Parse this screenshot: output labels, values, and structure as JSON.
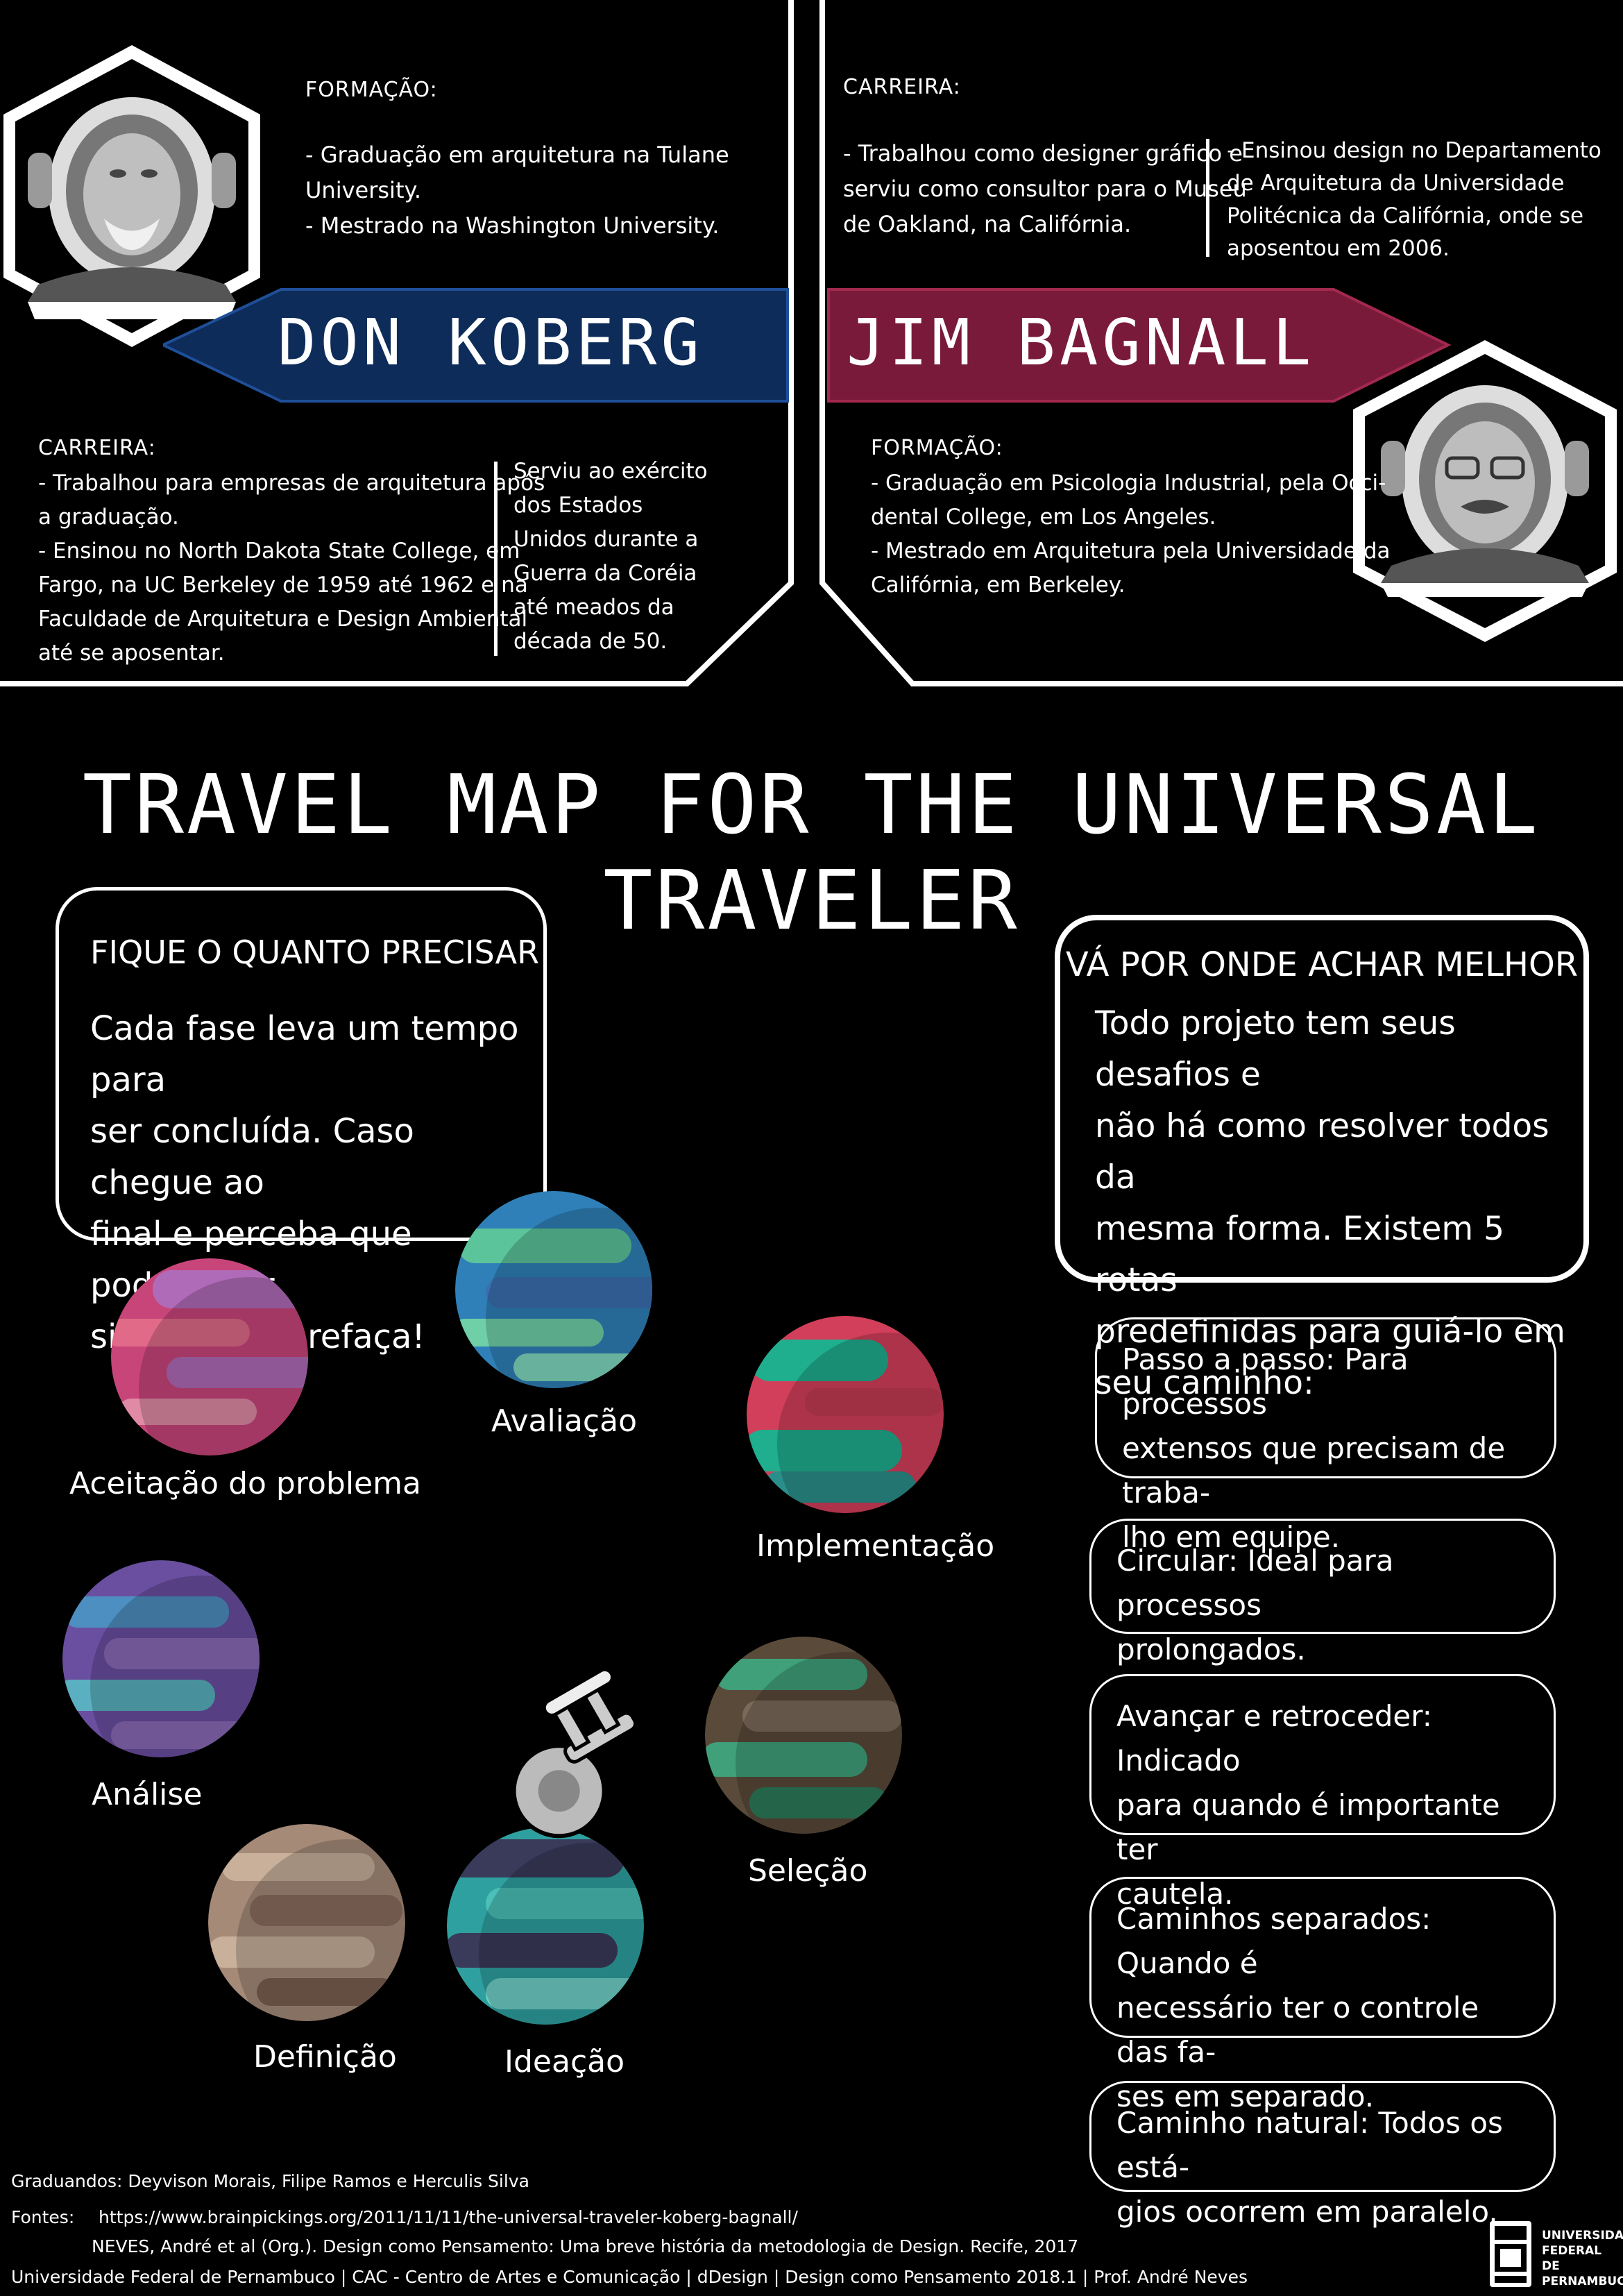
{
  "koberg": {
    "name": "DON KOBERG",
    "formacao_title": "FORMAÇÃO:",
    "formacao_lines": [
      "- Graduação em arquitetura na Tulane",
      "University.",
      "- Mestrado na Washington University."
    ],
    "carreira_title": "CARREIRA:",
    "carreira_lines": [
      "- Trabalhou para empresas de arquitetura após",
      "a graduação.",
      "- Ensinou no North Dakota State College, em",
      "Fargo, na UC Berkeley de 1959 até 1962 e na",
      "Faculdade de Arquitetura e Design Ambiental",
      "até se aposentar."
    ],
    "side_lines": [
      "Serviu ao exército",
      "dos Estados",
      "Unidos durante a",
      "Guerra da Coréia",
      "até meados da",
      "década de 50."
    ],
    "banner_color": "#0d2c5a"
  },
  "bagnall": {
    "name": "JIM BAGNALL",
    "carreira_title": "CARREIRA:",
    "carreira_lines": [
      "- Trabalhou como designer gráfico e",
      "serviu como consultor para o Museu",
      "de Oakland, na Califórnia."
    ],
    "side_lines": [
      "- Ensinou design no Departamento",
      "de Arquitetura da Universidade",
      "Politécnica da Califórnia, onde se",
      "aposentou em 2006."
    ],
    "formacao_title": "FORMAÇÃO:",
    "formacao_lines": [
      "- Graduação em Psicologia Industrial, pela Occi-",
      "dental College, em Los Angeles.",
      "- Mestrado em Arquitetura pela Universidade da",
      "Califórnia, em Berkeley."
    ],
    "banner_color": "#7a1a3a"
  },
  "main_title": "TRAVEL MAP FOR THE UNIVERSAL TRAVELER",
  "box_left": {
    "title": "FIQUE O QUANTO PRECISAR",
    "lines": [
      "Cada fase leva um tempo para",
      "ser concluída. Caso chegue ao",
      "final e perceba que poderia ter",
      "sido melhor, refaça!"
    ]
  },
  "box_right": {
    "title": "VÁ POR ONDE ACHAR MELHOR",
    "lines": [
      "Todo projeto tem seus desafios e",
      "não há como resolver todos da",
      "mesma forma. Existem 5 rotas",
      "predefinidas para guiá-lo em",
      "seu caminho:"
    ]
  },
  "routes": [
    {
      "lines": [
        "Passo a passo: Para processos",
        "extensos que precisam de traba-",
        "lho em equipe."
      ]
    },
    {
      "lines": [
        "Circular: Ideal para processos",
        "prolongados."
      ]
    },
    {
      "lines": [
        "Avançar e retroceder: Indicado",
        "para quando é importante ter",
        "cautela."
      ]
    },
    {
      "lines": [
        "Caminhos separados: Quando é",
        "necessário ter o controle das fa-",
        "ses em separado."
      ]
    },
    {
      "lines": [
        "Caminho natural: Todos os está-",
        "gios ocorrem em paralelo."
      ]
    }
  ],
  "planets": [
    {
      "label": "Aceitação do problema",
      "colors": [
        "#d4457a",
        "#b06bb8",
        "#e06a88"
      ]
    },
    {
      "label": "Avaliação",
      "colors": [
        "#2f8fc0",
        "#5bc49a",
        "#3a6fb0"
      ]
    },
    {
      "label": "Implementação",
      "colors": [
        "#d23f5a",
        "#1fae8e",
        "#2a7f8a"
      ]
    },
    {
      "label": "Análise",
      "colors": [
        "#6a4fa0",
        "#3d7fb0",
        "#8a6ab8"
      ]
    },
    {
      "label": "Seleção",
      "colors": [
        "#5a4a3a",
        "#3fa07a",
        "#2d7a5a"
      ]
    },
    {
      "label": "Definição",
      "colors": [
        "#a58a78",
        "#c9b09a",
        "#7a6050"
      ]
    },
    {
      "label": "Ideação",
      "colors": [
        "#3a3a5a",
        "#2fa0a0",
        "#4ac0b8"
      ]
    }
  ],
  "footer": {
    "graduandos": "Graduandos: Deyvison Morais, Filipe Ramos e Herculis Silva",
    "fontes_label": "Fontes:",
    "fonte1": "https://www.brainpickings.org/2011/11/11/the-universal-traveler-koberg-bagnall/",
    "fonte2": "NEVES, André et al (Org.). Design como Pensamento: Uma breve história da metodologia de Design. Recife, 2017",
    "bottom": "Universidade Federal de Pernambuco | CAC - Centro de Artes e Comunicação | dDesign | Design como Pensamento 2018.1 | Prof. André Neves",
    "logo_lines": [
      "UNIVERSIDADE",
      "FEDERAL",
      "DE PERNAMBUCO"
    ]
  }
}
